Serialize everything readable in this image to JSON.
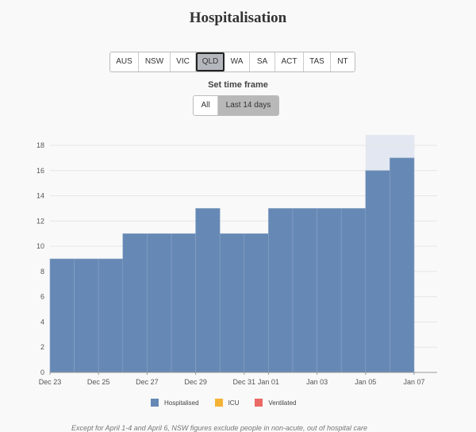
{
  "title": "Hospitalisation",
  "states": [
    "AUS",
    "NSW",
    "VIC",
    "QLD",
    "WA",
    "SA",
    "ACT",
    "TAS",
    "NT"
  ],
  "active_state": "QLD",
  "timeframe": {
    "label": "Set time frame",
    "options": [
      "All",
      "Last 14 days"
    ],
    "active": "Last 14 days"
  },
  "colors": {
    "hospitalised": "#6688b4",
    "icu": "#f5b335",
    "ventilated": "#ec6a65",
    "shade": "#e3e7f1"
  },
  "legend": [
    "Hospitalised",
    "ICU",
    "Ventilated"
  ],
  "footnote": "Except for April 1-4 and April 6, NSW figures exclude people in non-acute, out of hospital care",
  "chart_data": {
    "type": "bar",
    "categories": [
      "Dec 23",
      "Dec 24",
      "Dec 25",
      "Dec 26",
      "Dec 27",
      "Dec 28",
      "Dec 29",
      "Dec 30",
      "Dec 31",
      "Jan 01",
      "Jan 02",
      "Jan 03",
      "Jan 04",
      "Jan 05",
      "Jan 06"
    ],
    "series": [
      {
        "name": "Hospitalised",
        "values": [
          9,
          9,
          9,
          11,
          11,
          11,
          13,
          11,
          11,
          13,
          13,
          13,
          13,
          16,
          17
        ]
      }
    ],
    "x_tick_labels": [
      "Dec 23",
      "Dec 25",
      "Dec 27",
      "Dec 29",
      "Dec 31",
      "Jan 01",
      "Jan 03",
      "Jan 05",
      "Jan 07"
    ],
    "y_ticks": [
      0,
      2,
      4,
      6,
      8,
      10,
      12,
      14,
      16,
      18
    ],
    "ylim": [
      0,
      18
    ],
    "shaded_region": {
      "from": "Jan 05",
      "to": "Jan 07"
    },
    "grid": true,
    "legend_position": "bottom"
  }
}
